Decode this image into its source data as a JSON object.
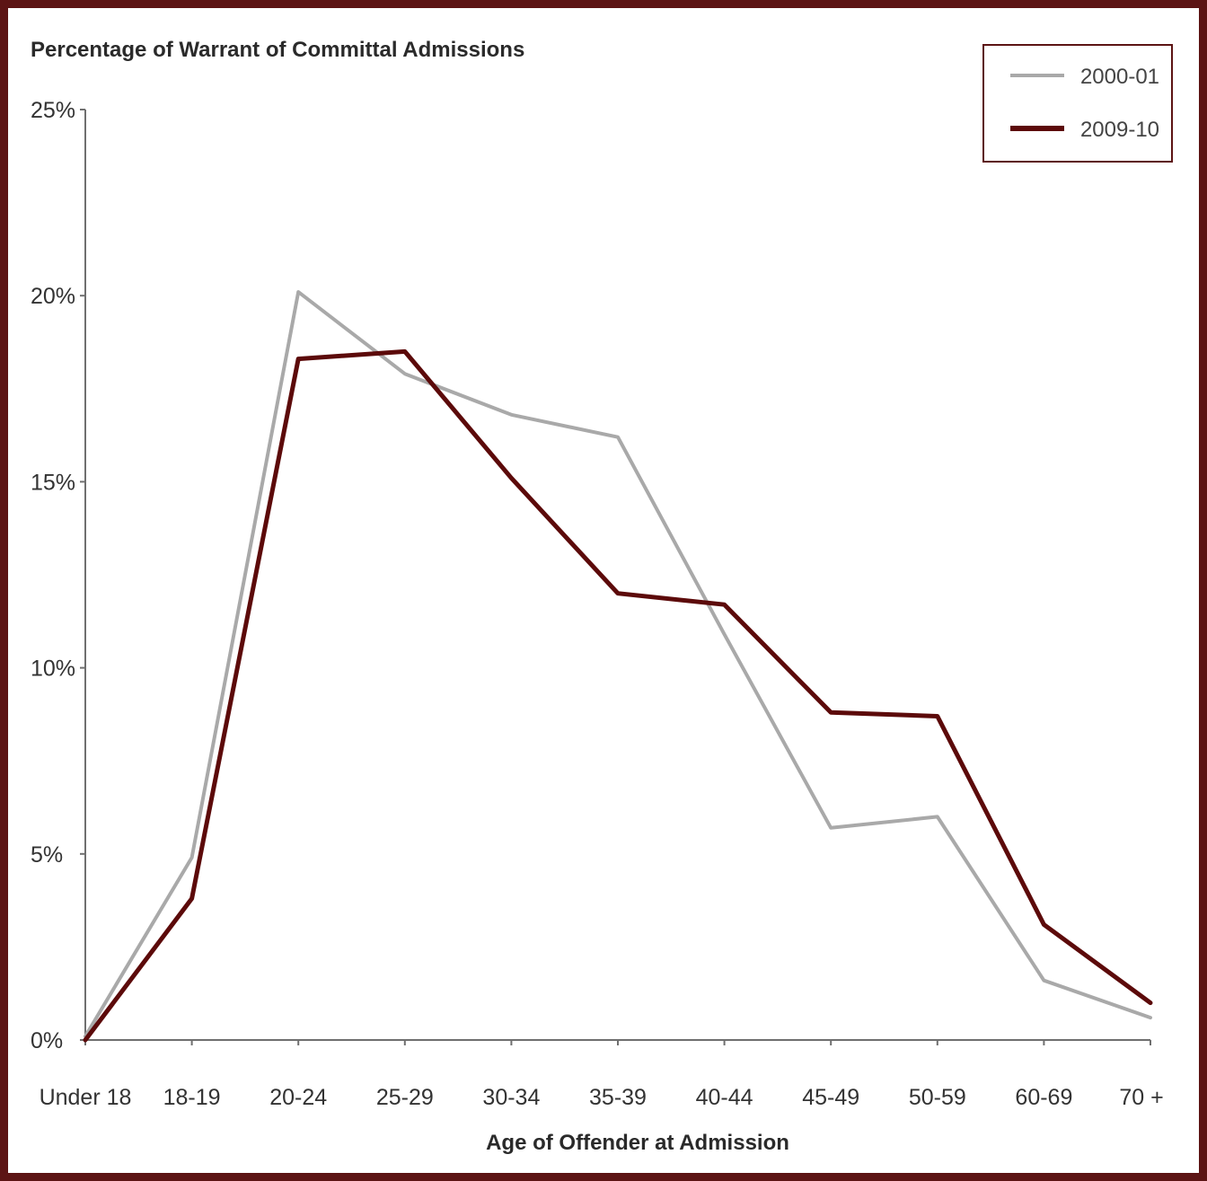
{
  "chart_data": {
    "type": "line",
    "ylabel": "Percentage of Warrant of Committal Admissions",
    "xlabel": "Age of Offender at Admission",
    "categories": [
      "Under 18",
      "18-19",
      "20-24",
      "25-29",
      "30-34",
      "35-39",
      "40-44",
      "45-49",
      "50-59",
      "60-69",
      "70 +"
    ],
    "ylim": [
      0,
      25
    ],
    "yticks": [
      0,
      5,
      10,
      15,
      20,
      25
    ],
    "ytick_labels": [
      "0%",
      "5%",
      "10%",
      "15%",
      "20%",
      "25%"
    ],
    "grid": false,
    "legend_position": "top-right",
    "series": [
      {
        "name": "2000-01",
        "color": "#a9a9a9",
        "values": [
          0.1,
          4.9,
          20.1,
          17.9,
          16.8,
          16.2,
          10.9,
          5.7,
          6.0,
          1.6,
          0.6
        ]
      },
      {
        "name": "2009-10",
        "color": "#5c0a0a",
        "values": [
          0.0,
          3.8,
          18.3,
          18.5,
          15.1,
          12.0,
          11.7,
          8.8,
          8.7,
          3.1,
          1.0
        ]
      }
    ]
  }
}
